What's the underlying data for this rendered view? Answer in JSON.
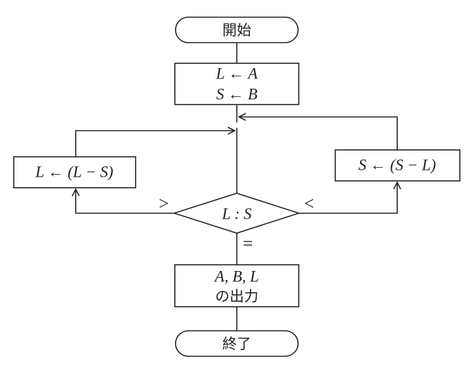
{
  "flowchart": {
    "start": "開始",
    "init_line1": "L ← A",
    "init_line2": "S ← B",
    "left_process": "L ← (L − S)",
    "right_process": "S ← (S − L)",
    "decision": "L : S",
    "branch_greater": ">",
    "branch_less": "<",
    "branch_equal": "=",
    "output_line1": "A, B, L",
    "output_line2": "の出力",
    "end": "終了"
  }
}
